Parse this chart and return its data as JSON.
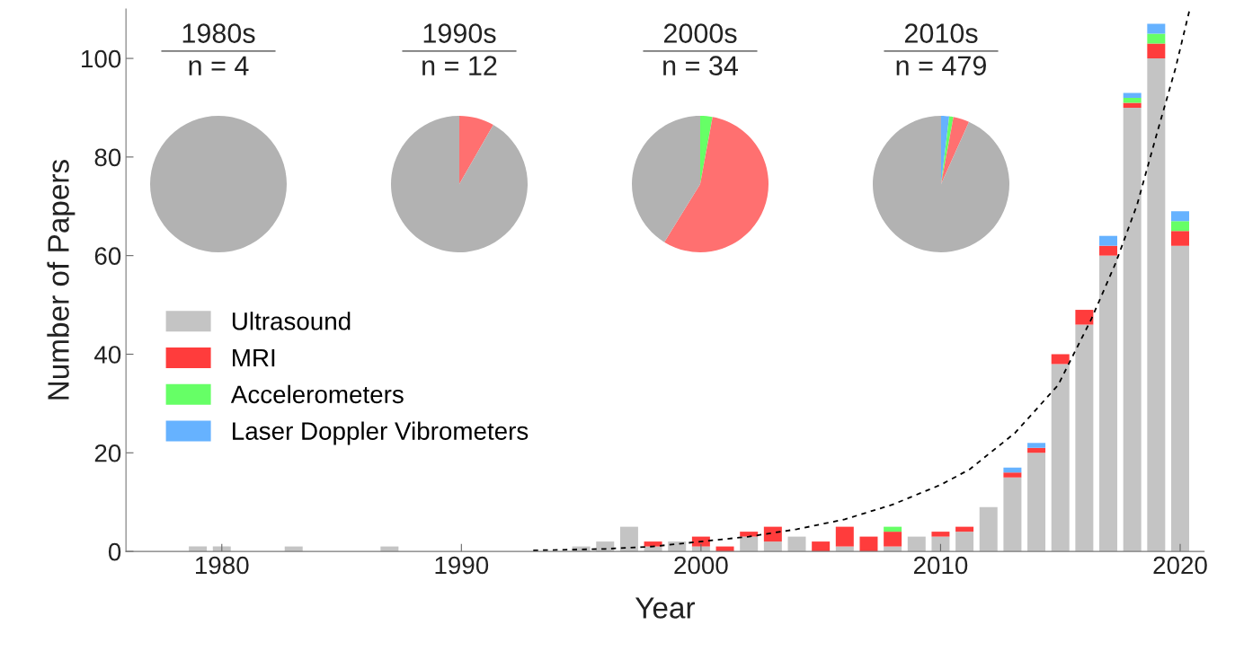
{
  "chart_data": [
    {
      "type": "bar",
      "xlabel": "Year",
      "ylabel": "Number of Papers",
      "stacked": true,
      "x": [
        1979,
        1980,
        1981,
        1982,
        1983,
        1984,
        1985,
        1986,
        1987,
        1988,
        1989,
        1990,
        1991,
        1992,
        1993,
        1994,
        1995,
        1996,
        1997,
        1998,
        1999,
        2000,
        2001,
        2002,
        2003,
        2004,
        2005,
        2006,
        2007,
        2008,
        2009,
        2010,
        2011,
        2012,
        2013,
        2014,
        2015,
        2016,
        2017,
        2018,
        2019,
        2020
      ],
      "series": [
        {
          "name": "Ultrasound",
          "color": "#c4c4c4",
          "values": [
            1,
            1,
            null,
            null,
            1,
            null,
            null,
            null,
            1,
            null,
            null,
            null,
            null,
            null,
            null,
            null,
            1,
            2,
            5,
            1,
            2,
            1,
            null,
            3,
            2,
            3,
            null,
            1,
            null,
            1,
            3,
            3,
            4,
            9,
            15,
            20,
            38,
            46,
            60,
            90,
            100,
            62
          ]
        },
        {
          "name": "MRI",
          "color": "#ff3c3c",
          "values": [
            null,
            null,
            null,
            null,
            null,
            null,
            null,
            null,
            null,
            null,
            null,
            null,
            null,
            null,
            null,
            null,
            null,
            null,
            null,
            1,
            null,
            2,
            1,
            1,
            3,
            null,
            2,
            4,
            3,
            3,
            null,
            1,
            1,
            null,
            1,
            1,
            2,
            3,
            2,
            1,
            3,
            3
          ]
        },
        {
          "name": "Accelerometers",
          "color": "#66ff66",
          "values": [
            null,
            null,
            null,
            null,
            null,
            null,
            null,
            null,
            null,
            null,
            null,
            null,
            null,
            null,
            null,
            null,
            null,
            null,
            null,
            null,
            null,
            null,
            null,
            null,
            null,
            null,
            null,
            null,
            null,
            1,
            null,
            null,
            null,
            null,
            null,
            null,
            null,
            null,
            null,
            1,
            2,
            2
          ]
        },
        {
          "name": "Laser Doppler Vibrometers",
          "color": "#66b2ff",
          "values": [
            null,
            null,
            null,
            null,
            null,
            null,
            null,
            null,
            null,
            null,
            null,
            null,
            null,
            null,
            null,
            null,
            null,
            null,
            null,
            null,
            null,
            null,
            null,
            null,
            null,
            null,
            null,
            null,
            null,
            null,
            null,
            null,
            null,
            null,
            1,
            1,
            null,
            null,
            2,
            1,
            2,
            2
          ]
        },
        {
          "type": "line",
          "color": "#000000",
          "line_style": "dashed",
          "x": [
            1993,
            1996,
            1998,
            2000,
            2002,
            2004,
            2006,
            2008,
            2010,
            2011.2,
            2013.1,
            2014.9,
            2016.3,
            2017.3,
            2018.2,
            2019.1,
            2019.8,
            2020.4
          ],
          "values": [
            0.2,
            0.5,
            1,
            2,
            3,
            4.5,
            6.5,
            9.5,
            13.5,
            16.6,
            24,
            33.7,
            47.2,
            58.4,
            70.3,
            86,
            97.9,
            110
          ]
        }
      ],
      "xlim": [
        1976,
        2021
      ],
      "xticks": [
        1980,
        1990,
        2000,
        2010,
        2020
      ],
      "ylim": [
        0,
        110
      ],
      "yticks": [
        0,
        20,
        40,
        60,
        80,
        100
      ],
      "legend": "center left",
      "grid": false
    },
    {
      "type": "pie",
      "title": "1980s",
      "subtitle": "n = 4",
      "categories": [
        null
      ],
      "values": [
        100
      ],
      "colors": [
        "#b2b2b2"
      ]
    },
    {
      "type": "pie",
      "title": "1990s",
      "subtitle": "n = 12",
      "categories": [
        null,
        null
      ],
      "values": [
        8.3,
        91.7
      ],
      "colors": [
        "#ff7070",
        "#b2b2b2"
      ]
    },
    {
      "type": "pie",
      "title": "2000s",
      "subtitle": "n = 34",
      "categories": [
        null,
        null,
        null
      ],
      "values": [
        2.9,
        55.9,
        41.2
      ],
      "colors": [
        "#66ff66",
        "#ff7070",
        "#b2b2b2"
      ]
    },
    {
      "type": "pie",
      "title": "2010s",
      "subtitle": "n = 479",
      "categories": [
        null,
        null,
        null,
        null
      ],
      "values": [
        1.9,
        1.0,
        3.8,
        93.3
      ],
      "colors": [
        "#66b2ff",
        "#66ff66",
        "#ff7070",
        "#b2b2b2"
      ]
    }
  ]
}
